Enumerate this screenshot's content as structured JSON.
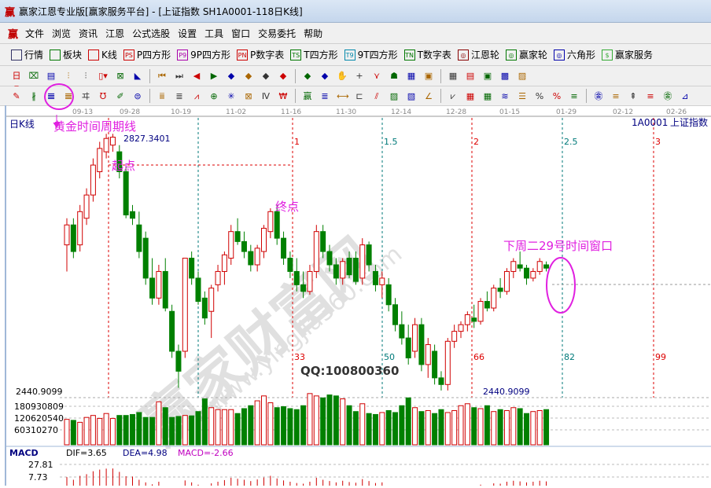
{
  "window": {
    "title": "赢家江恩专业版[赢家服务平台] - [上证指数  SH1A0001-118日K线]",
    "logo": "赢"
  },
  "menu": [
    "文件",
    "浏览",
    "资讯",
    "江恩",
    "公式选股",
    "设置",
    "工具",
    "窗口",
    "交易委托",
    "帮助"
  ],
  "toolbar1": [
    {
      "icon": "grid-icon",
      "label": "行情",
      "color": "#336"
    },
    {
      "icon": "blocks-icon",
      "label": "板块",
      "color": "#070"
    },
    {
      "icon": "kline-icon",
      "label": "K线",
      "color": "#c00"
    },
    {
      "icon": "p-square-icon",
      "label": "P四方形",
      "tag": "PS",
      "color": "#c00"
    },
    {
      "icon": "9p-square-icon",
      "label": "9P四方形",
      "tag": "P9",
      "color": "#a0a"
    },
    {
      "icon": "p-number-icon",
      "label": "P数字表",
      "tag": "PN",
      "color": "#c00"
    },
    {
      "icon": "t-square-icon",
      "label": "T四方形",
      "tag": "TS",
      "color": "#070"
    },
    {
      "icon": "9t-square-icon",
      "label": "9T四方形",
      "tag": "T9",
      "color": "#08a"
    },
    {
      "icon": "t-number-icon",
      "label": "T数字表",
      "tag": "TN",
      "color": "#070"
    },
    {
      "icon": "gann-wheel-icon",
      "label": "江恩轮",
      "tag": "◎",
      "color": "#800"
    },
    {
      "icon": "yingjia-wheel-icon",
      "label": "赢家轮",
      "tag": "◎",
      "color": "#070"
    },
    {
      "icon": "hexagon-icon",
      "label": "六角形",
      "tag": "◎",
      "color": "#00a"
    },
    {
      "icon": "dollar-icon",
      "label": "赢家服务",
      "tag": "$",
      "color": "#3a3"
    }
  ],
  "toolbar2": [
    "日▾",
    "⌧",
    "▤",
    "⫶",
    "⫶",
    "▯▾",
    "⊠",
    "◣",
    "⏮",
    "⏭",
    "◀",
    "▶",
    "◆",
    "◆",
    "◆",
    "◆",
    "◆",
    "◆",
    "✋",
    "+",
    "⋎",
    "☗",
    "▦",
    "▣",
    "▦",
    "▤",
    "▣",
    "▩",
    "▨"
  ],
  "toolbar3": [
    "✎",
    "∦",
    "𝌆",
    "𝌆",
    "ヰ",
    "℧",
    "✐",
    "⊜",
    "ⅲ",
    "≣",
    "⩘",
    "⊕",
    "✳",
    "⊠",
    "Ⅳ",
    "₩",
    "赢",
    "≣",
    "⟷",
    "⊏",
    "⫽",
    "▨",
    "▧",
    "∠",
    "⩗",
    "▦",
    "▦",
    "≋",
    "☰",
    "%",
    "%",
    "≡",
    "㊎",
    "≡",
    "⇞",
    "≡",
    "㊎",
    "⊿"
  ],
  "header": {
    "period": "日K线",
    "code": "1A0001",
    "name": "上证指数"
  },
  "annotations": {
    "golden_label": "黄金时间周期线",
    "start": "起点",
    "end": "终点",
    "high": "2827.3401",
    "low": "2440.9099",
    "low_axis": "2440.9099",
    "qq": "QQ:100800360",
    "window_note": "下周二29号时间窗口"
  },
  "watermark": {
    "brand": "赢家财富网",
    "url": "www.yingjia360.com"
  },
  "colors": {
    "up": "#d00000",
    "down": "#008000",
    "annotation": "#e020e0",
    "teal": "#007a7a",
    "navy": "#000080"
  },
  "chart_data": {
    "type": "candlestick",
    "x_ticks": [
      "09-13",
      "09-28",
      "10-19",
      "11-02",
      "11-16",
      "11-30",
      "12-14",
      "12-28",
      "01-15",
      "01-29",
      "02-12",
      "02-26"
    ],
    "price_range": [
      2440.9099,
      2827.3401
    ],
    "cycle_lines": [
      {
        "top": "",
        "bottom": ""
      },
      {
        "top": "",
        "bottom": ""
      },
      {
        "top": "1",
        "bottom": "33"
      },
      {
        "top": "1.5",
        "bottom": "50"
      },
      {
        "top": "2",
        "bottom": "66"
      },
      {
        "top": "2.5",
        "bottom": "82"
      },
      {
        "top": "3",
        "bottom": "99"
      }
    ],
    "candles": [
      [
        2660,
        2700,
        2620,
        2690
      ],
      [
        2690,
        2700,
        2640,
        2650
      ],
      [
        2660,
        2720,
        2650,
        2710
      ],
      [
        2700,
        2745,
        2690,
        2735
      ],
      [
        2735,
        2790,
        2725,
        2780
      ],
      [
        2770,
        2815,
        2760,
        2805
      ],
      [
        2800,
        2827,
        2790,
        2820
      ],
      [
        2810,
        2827,
        2800,
        2822
      ],
      [
        2800,
        2810,
        2760,
        2770
      ],
      [
        2770,
        2780,
        2700,
        2705
      ],
      [
        2710,
        2720,
        2690,
        2700
      ],
      [
        2690,
        2710,
        2640,
        2650
      ],
      [
        2670,
        2680,
        2600,
        2610
      ],
      [
        2610,
        2640,
        2570,
        2580
      ],
      [
        2580,
        2630,
        2570,
        2620
      ],
      [
        2620,
        2640,
        2560,
        2565
      ],
      [
        2560,
        2570,
        2490,
        2500
      ],
      [
        2500,
        2510,
        2445,
        2470
      ],
      [
        2500,
        2640,
        2490,
        2640
      ],
      [
        2640,
        2650,
        2600,
        2610
      ],
      [
        2610,
        2620,
        2570,
        2575
      ],
      [
        2580,
        2590,
        2540,
        2550
      ],
      [
        2560,
        2600,
        2520,
        2595
      ],
      [
        2600,
        2630,
        2590,
        2620
      ],
      [
        2620,
        2650,
        2600,
        2645
      ],
      [
        2640,
        2690,
        2630,
        2680
      ],
      [
        2680,
        2700,
        2660,
        2665
      ],
      [
        2665,
        2680,
        2640,
        2650
      ],
      [
        2650,
        2660,
        2620,
        2630
      ],
      [
        2630,
        2660,
        2620,
        2655
      ],
      [
        2650,
        2690,
        2640,
        2685
      ],
      [
        2680,
        2715,
        2670,
        2710
      ],
      [
        2710,
        2720,
        2660,
        2670
      ],
      [
        2670,
        2680,
        2630,
        2640
      ],
      [
        2640,
        2650,
        2610,
        2620
      ],
      [
        2620,
        2640,
        2590,
        2600
      ],
      [
        2600,
        2620,
        2580,
        2590
      ],
      [
        2590,
        2630,
        2585,
        2620
      ],
      [
        2620,
        2690,
        2610,
        2680
      ],
      [
        2680,
        2690,
        2640,
        2650
      ],
      [
        2650,
        2660,
        2620,
        2630
      ],
      [
        2630,
        2640,
        2600,
        2610
      ],
      [
        2610,
        2640,
        2600,
        2635
      ],
      [
        2640,
        2650,
        2610,
        2615
      ],
      [
        2640,
        2650,
        2600,
        2605
      ],
      [
        2610,
        2670,
        2600,
        2660
      ],
      [
        2660,
        2665,
        2620,
        2630
      ],
      [
        2620,
        2630,
        2590,
        2600
      ],
      [
        2600,
        2620,
        2580,
        2610
      ],
      [
        2600,
        2610,
        2560,
        2570
      ],
      [
        2570,
        2580,
        2530,
        2540
      ],
      [
        2540,
        2560,
        2510,
        2520
      ],
      [
        2520,
        2540,
        2480,
        2490
      ],
      [
        2500,
        2550,
        2490,
        2540
      ],
      [
        2540,
        2550,
        2470,
        2480
      ],
      [
        2480,
        2520,
        2460,
        2510
      ],
      [
        2500,
        2510,
        2450,
        2460
      ],
      [
        2460,
        2470,
        2441,
        2450
      ],
      [
        2450,
        2520,
        2441,
        2515
      ],
      [
        2515,
        2540,
        2505,
        2530
      ],
      [
        2530,
        2545,
        2520,
        2540
      ],
      [
        2540,
        2560,
        2530,
        2555
      ],
      [
        2550,
        2570,
        2535,
        2545
      ],
      [
        2545,
        2580,
        2540,
        2575
      ],
      [
        2575,
        2590,
        2560,
        2565
      ],
      [
        2565,
        2600,
        2560,
        2595
      ],
      [
        2595,
        2610,
        2580,
        2590
      ],
      [
        2590,
        2625,
        2585,
        2620
      ],
      [
        2620,
        2640,
        2610,
        2635
      ],
      [
        2630,
        2650,
        2620,
        2625
      ],
      [
        2625,
        2630,
        2600,
        2610
      ],
      [
        2610,
        2625,
        2605,
        2620
      ],
      [
        2620,
        2640,
        2615,
        2635
      ],
      [
        2630,
        2635,
        2620,
        2625
      ]
    ],
    "volume": {
      "ticks": [
        "180930809",
        "120620540",
        "60310270"
      ],
      "values": [
        130000000,
        125000000,
        115000000,
        140000000,
        150000000,
        135000000,
        160000000,
        135000000,
        150000000,
        150000000,
        155000000,
        165000000,
        140000000,
        140000000,
        220000000,
        190000000,
        140000000,
        145000000,
        150000000,
        148000000,
        170000000,
        235000000,
        190000000,
        180000000,
        180000000,
        180000000,
        160000000,
        185000000,
        200000000,
        225000000,
        250000000,
        215000000,
        190000000,
        195000000,
        185000000,
        180000000,
        200000000,
        262000000,
        250000000,
        240000000,
        255000000,
        250000000,
        235000000,
        200000000,
        170000000,
        210000000,
        160000000,
        155000000,
        165000000,
        175000000,
        165000000,
        200000000,
        240000000,
        190000000,
        170000000,
        175000000,
        160000000,
        180000000,
        165000000,
        175000000,
        200000000,
        210000000,
        190000000,
        185000000,
        200000000,
        170000000,
        180000000,
        175000000,
        190000000,
        185000000,
        160000000,
        170000000,
        175000000,
        180000000
      ]
    },
    "macd": {
      "label": "MACD",
      "dif": "DIF=3.65",
      "dea": "DEA=4.98",
      "macd": "MACD=-2.66",
      "ticks": [
        "27.81",
        "7.73"
      ]
    }
  }
}
